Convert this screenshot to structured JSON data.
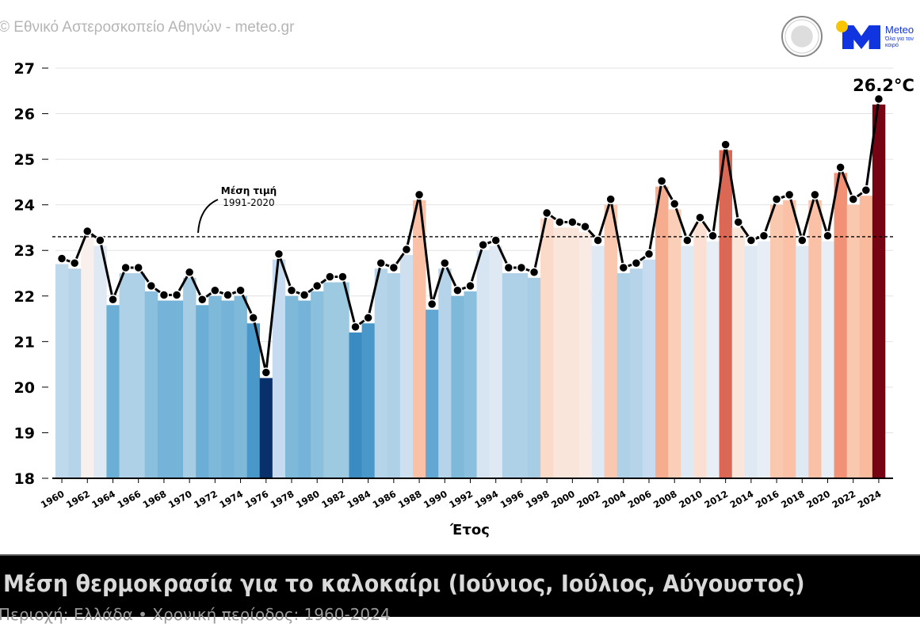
{
  "header": {
    "credit": "© Εθνικό Αστεροσκοπείο Αθηνών - meteo.gr",
    "logo_name": "Meteo",
    "logo_slogan": "Όλα για τον καιρό"
  },
  "footer": {
    "title": "Μέση θερμοκρασία για το καλοκαίρι (Ιούνιος, Ιούλιος, Αύγουστος)",
    "subtitle": "Περιοχή: Ελλάδα • Χρονική περίοδος: 1960-2024"
  },
  "chart_data": {
    "type": "bar",
    "xlabel": "Έτος",
    "ylim": [
      18,
      27
    ],
    "yticks": [
      18,
      19,
      20,
      21,
      22,
      23,
      24,
      25,
      26,
      27
    ],
    "grid": true,
    "x": [
      1960,
      1961,
      1962,
      1963,
      1964,
      1965,
      1966,
      1967,
      1968,
      1969,
      1970,
      1971,
      1972,
      1973,
      1974,
      1975,
      1976,
      1977,
      1978,
      1979,
      1980,
      1981,
      1982,
      1983,
      1984,
      1985,
      1986,
      1987,
      1988,
      1989,
      1990,
      1991,
      1992,
      1993,
      1994,
      1995,
      1996,
      1997,
      1998,
      1999,
      2000,
      2001,
      2002,
      2003,
      2004,
      2005,
      2006,
      2007,
      2008,
      2009,
      2010,
      2011,
      2012,
      2013,
      2014,
      2015,
      2016,
      2017,
      2018,
      2019,
      2020,
      2021,
      2022,
      2023,
      2024
    ],
    "values": [
      22.7,
      22.6,
      23.3,
      23.1,
      21.8,
      22.5,
      22.5,
      22.1,
      21.9,
      21.9,
      22.4,
      21.8,
      22.0,
      21.9,
      22.0,
      21.4,
      20.2,
      22.8,
      22.0,
      21.9,
      22.1,
      22.3,
      22.3,
      21.2,
      21.4,
      22.6,
      22.5,
      22.9,
      24.1,
      21.7,
      22.6,
      22.0,
      22.1,
      23.0,
      23.1,
      22.5,
      22.5,
      22.4,
      23.7,
      23.5,
      23.5,
      23.4,
      23.1,
      24.0,
      22.5,
      22.6,
      22.8,
      24.4,
      23.9,
      23.1,
      23.6,
      23.2,
      25.2,
      23.5,
      23.1,
      23.2,
      24.0,
      24.1,
      23.1,
      24.1,
      23.2,
      24.7,
      24.0,
      24.2,
      26.2
    ],
    "overlay": "line with markers",
    "reference_line": {
      "value": 23.3,
      "label": "Μέση τιμή",
      "sublabel": "1991-2020",
      "style": "dashed"
    },
    "max_annotation": "26.2°C",
    "colormap": "diverging blue-white-red by deviation from reference"
  }
}
